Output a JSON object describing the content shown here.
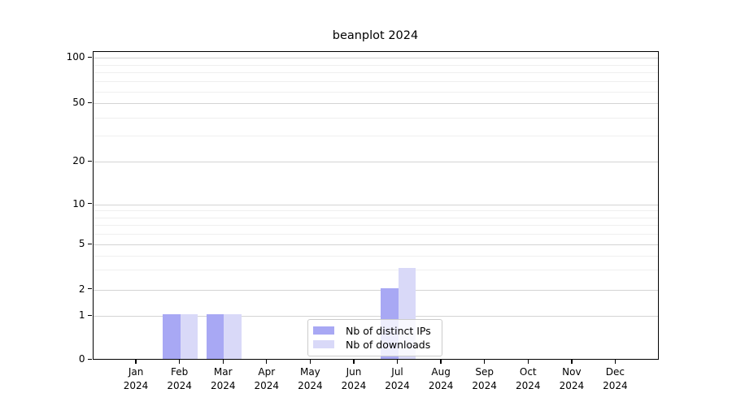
{
  "chart_data": {
    "type": "bar",
    "title": "beanplot 2024",
    "categories": [
      "Jan",
      "Feb",
      "Mar",
      "Apr",
      "May",
      "Jun",
      "Jul",
      "Aug",
      "Sep",
      "Oct",
      "Nov",
      "Dec"
    ],
    "x_sublabel": "2024",
    "series": [
      {
        "name": "Nb of distinct IPs",
        "color": "#a8a8f4",
        "values": [
          0,
          1,
          1,
          0,
          0,
          0,
          2,
          0,
          0,
          0,
          0,
          0
        ]
      },
      {
        "name": "Nb of downloads",
        "color": "#d9d9f8",
        "values": [
          0,
          1,
          1,
          0,
          0,
          0,
          3,
          0,
          0,
          0,
          0,
          0
        ]
      }
    ],
    "yticks": [
      0,
      1,
      2,
      5,
      10,
      20,
      50,
      100
    ],
    "yticks_minor": [
      3,
      4,
      6,
      7,
      8,
      9,
      30,
      40,
      60,
      70,
      80,
      90
    ],
    "ylim": [
      0,
      110
    ],
    "scale": "symlog",
    "grid": "horizontal",
    "legend_position": "lower center",
    "background_color": "#ffffff",
    "spine_color": "#000000"
  }
}
